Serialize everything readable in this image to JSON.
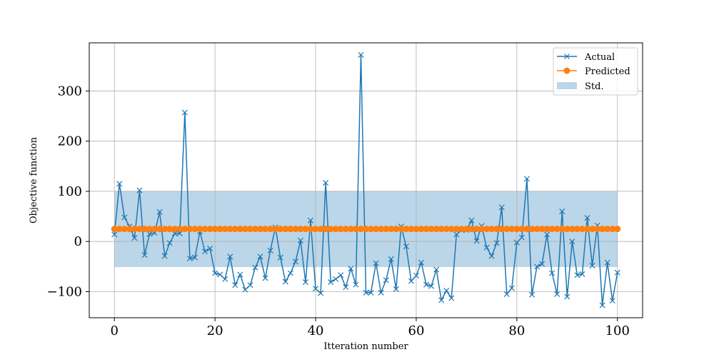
{
  "chart_data": {
    "type": "line",
    "xlabel": "Itteration number",
    "ylabel": "Objective function",
    "xlim": [
      -5,
      105
    ],
    "ylim": [
      -152,
      396
    ],
    "xticks": [
      0,
      20,
      40,
      60,
      80,
      100
    ],
    "yticks": [
      -100,
      0,
      100,
      200,
      300
    ],
    "grid": true,
    "legend_position": "top-right",
    "std_band": {
      "name": "Std.",
      "lower": -51,
      "upper": 100,
      "color": "#1f77b4"
    },
    "series": [
      {
        "name": "Actual",
        "color": "#1f77b4",
        "marker": "x",
        "x": [
          0,
          1,
          2,
          3,
          4,
          5,
          6,
          7,
          8,
          9,
          10,
          11,
          12,
          13,
          14,
          15,
          16,
          17,
          18,
          19,
          20,
          21,
          22,
          23,
          24,
          25,
          26,
          27,
          28,
          29,
          30,
          31,
          32,
          33,
          34,
          35,
          36,
          37,
          38,
          39,
          40,
          41,
          42,
          43,
          44,
          45,
          46,
          47,
          48,
          49,
          50,
          51,
          52,
          53,
          54,
          55,
          56,
          57,
          58,
          59,
          60,
          61,
          62,
          63,
          64,
          65,
          66,
          67,
          68,
          69,
          70,
          71,
          72,
          73,
          74,
          75,
          76,
          77,
          78,
          79,
          80,
          81,
          82,
          83,
          84,
          85,
          86,
          87,
          88,
          89,
          90,
          91,
          92,
          93,
          94,
          95,
          96,
          97,
          98,
          99,
          100
        ],
        "y": [
          14,
          115,
          48,
          30,
          7,
          102,
          -27,
          15,
          17,
          59,
          -29,
          -3,
          16,
          16,
          257,
          -34,
          -32,
          20,
          -20,
          -14,
          -63,
          -66,
          -75,
          -30,
          -87,
          -66,
          -96,
          -87,
          -52,
          -30,
          -73,
          -18,
          28,
          -32,
          -80,
          -63,
          -40,
          2,
          -81,
          42,
          -94,
          -103,
          117,
          -81,
          -75,
          -67,
          -91,
          -54,
          -86,
          372,
          -102,
          -102,
          -43,
          -102,
          -77,
          -35,
          -95,
          30,
          -10,
          -79,
          -68,
          -42,
          -86,
          -89,
          -56,
          -117,
          -98,
          -113,
          14,
          23,
          23,
          42,
          1,
          31,
          -12,
          -29,
          -3,
          68,
          -105,
          -93,
          -2,
          8,
          125,
          -106,
          -50,
          -45,
          14,
          -63,
          -105,
          60,
          -110,
          0,
          -67,
          -65,
          47,
          -48,
          32,
          -127,
          -42,
          -118,
          -62
        ]
      },
      {
        "name": "Predicted",
        "color": "#ff7f0e",
        "marker": "o",
        "constant_value": 25,
        "x_range": [
          0,
          100
        ]
      }
    ]
  }
}
